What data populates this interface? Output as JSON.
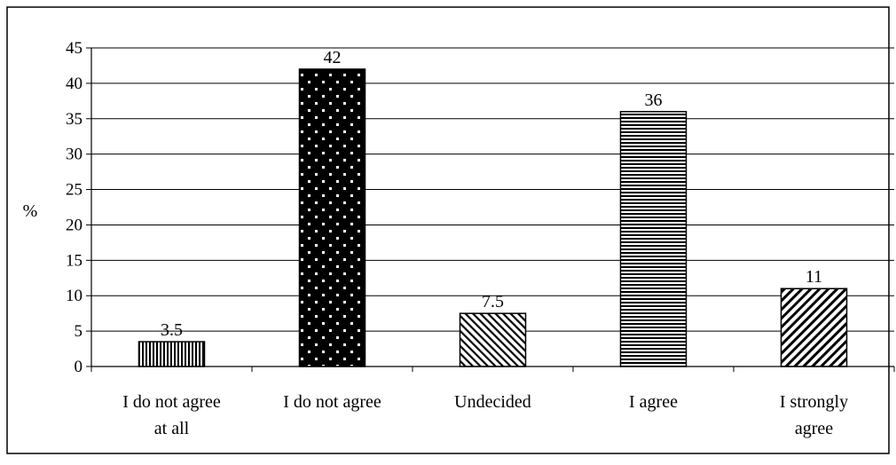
{
  "chart_data": {
    "type": "bar",
    "title": "",
    "xlabel": "",
    "ylabel": "%",
    "ylim": [
      0,
      45
    ],
    "ytick_step": 5,
    "grid": true,
    "legend": "none",
    "categories": [
      [
        "I do not agree",
        "at all"
      ],
      [
        "I do not agree"
      ],
      [
        "Undecided"
      ],
      [
        "I agree"
      ],
      [
        "I strongly",
        "agree"
      ]
    ],
    "values": [
      3.5,
      42,
      7.5,
      36,
      11
    ],
    "data_labels": [
      "3.5",
      "42",
      "7.5",
      "36",
      "11"
    ],
    "patterns": [
      "vertical-lines",
      "dots-on-black",
      "diagonal-backslash",
      "horizontal-lines",
      "diagonal-slash"
    ],
    "colors": {
      "ink": "#000000",
      "background": "#ffffff"
    }
  }
}
